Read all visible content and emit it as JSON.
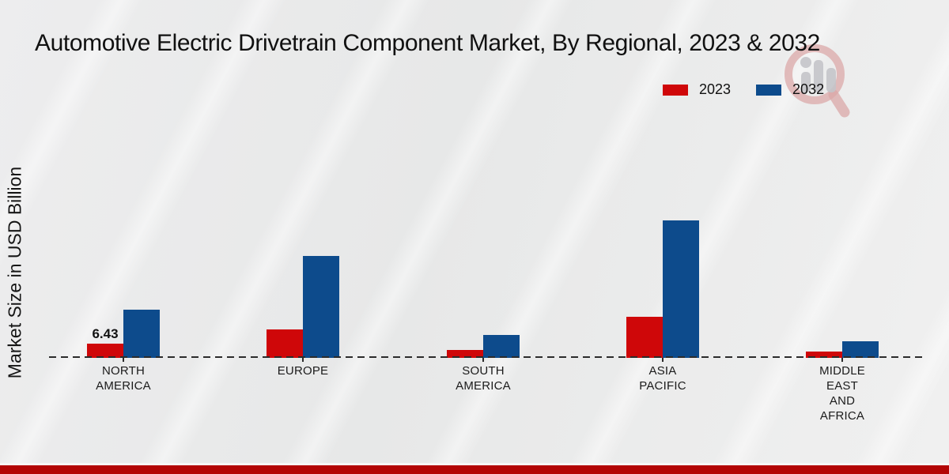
{
  "title": "Automotive Electric Drivetrain Component Market, By Regional, 2023 & 2032",
  "y_axis_label": "Market Size in USD Billion",
  "legend": [
    {
      "label": "2023",
      "color": "#cf0709"
    },
    {
      "label": "2032",
      "color": "#0d4b8c"
    }
  ],
  "watermark": "bar-chart-magnifier-logo",
  "colors": {
    "series_2023": "#cf0709",
    "series_2032": "#0d4b8c",
    "baseline": "#2b2b2b",
    "footer_stripe": "#b30505",
    "background": "#eaeaeb"
  },
  "chart_data": {
    "type": "bar",
    "title": "Automotive Electric Drivetrain Component Market, By Regional, 2023 & 2032",
    "xlabel": "",
    "ylabel": "Market Size in USD Billion",
    "ylim": [
      0,
      70
    ],
    "grid": false,
    "legend_position": "top-right",
    "baseline_style": "dashed",
    "categories": [
      "NORTH AMERICA",
      "EUROPE",
      "SOUTH AMERICA",
      "ASIA PACIFIC",
      "MIDDLE EAST AND AFRICA"
    ],
    "category_label_lines": [
      [
        "NORTH",
        "AMERICA"
      ],
      [
        "EUROPE"
      ],
      [
        "SOUTH",
        "AMERICA"
      ],
      [
        "ASIA",
        "PACIFIC"
      ],
      [
        "MIDDLE",
        "EAST",
        "AND",
        "AFRICA"
      ]
    ],
    "series": [
      {
        "name": "2023",
        "color": "#cf0709",
        "values": [
          6.43,
          12.9,
          3.6,
          18.6,
          2.9
        ]
      },
      {
        "name": "2032",
        "color": "#0d4b8c",
        "values": [
          21.8,
          46.1,
          10.4,
          62.2,
          7.5
        ]
      }
    ],
    "value_labels": [
      {
        "series_index": 0,
        "category_index": 0,
        "text": "6.43"
      }
    ]
  }
}
